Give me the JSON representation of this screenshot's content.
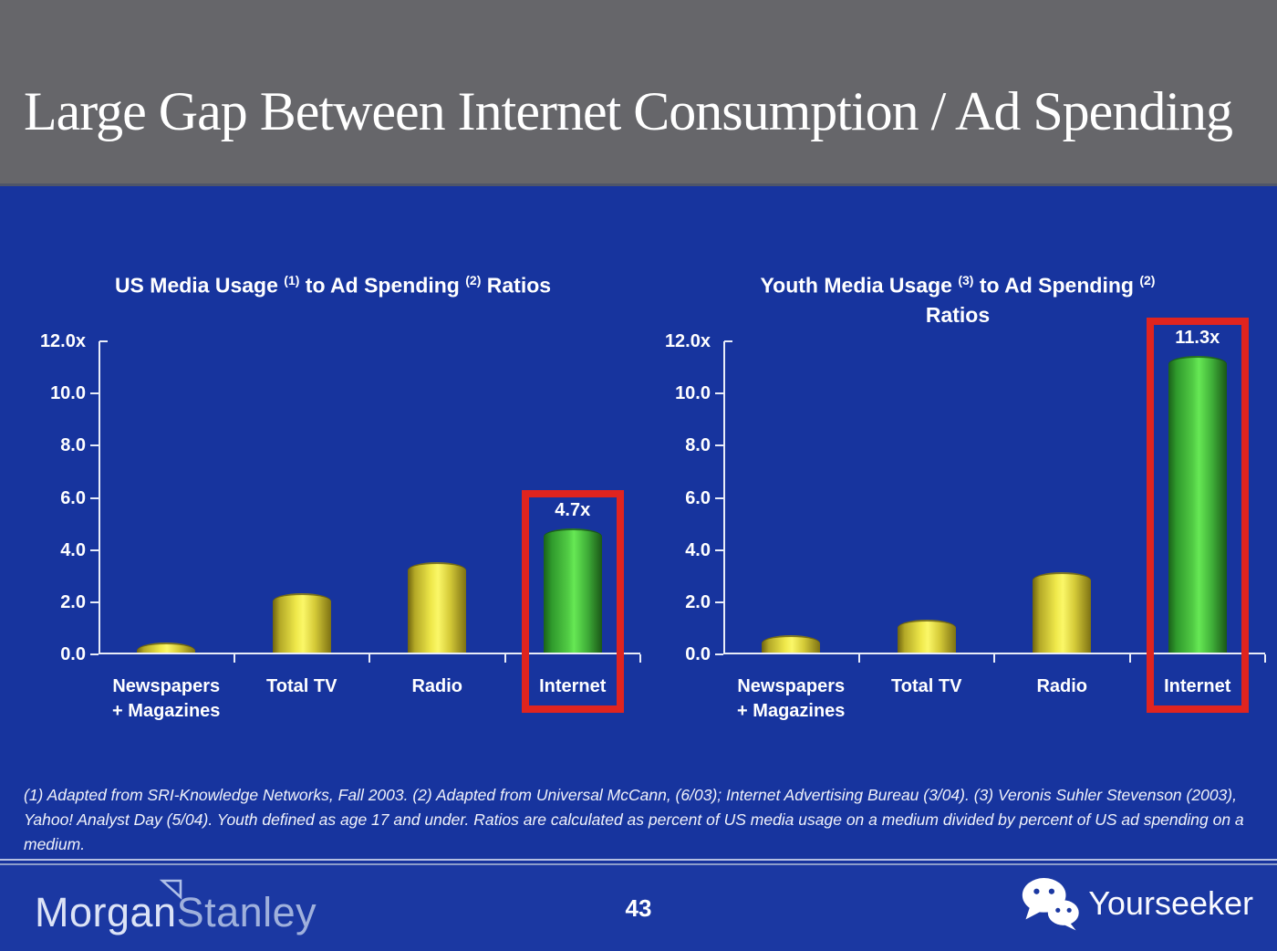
{
  "slide_title": "Large Gap Between Internet Consumption / Ad Spending",
  "footnote": "(1) Adapted from SRI-Knowledge Networks, Fall 2003.  (2) Adapted from Universal McCann, (6/03); Internet Advertising Bureau (3/04). (3) Veronis Suhler Stevenson (2003), Yahoo! Analyst Day (5/04).  Youth defined as age 17 and under.  Ratios are calculated as percent of US media usage on a medium divided by percent of US ad spending on a medium.",
  "footer": {
    "brand_part1": "Morgan",
    "brand_part2": "Stanley",
    "page_number": "43",
    "watermark_label": "Yourseeker",
    "watermark_icon": "wechat-icon",
    "brand_icon": "morgan-stanley-triangle-icon"
  },
  "colors": {
    "header_bg": "#66666A",
    "body_bg": "#17349E",
    "footer_bg": "#1B38A2",
    "title_text": "#FFFFFF",
    "axis_line": "#E8ECF8",
    "bar_yellow_mid": "#FBF768",
    "bar_yellow_edge": "#6E630F",
    "bar_green_mid": "#66E854",
    "bar_green_edge": "#1B611A",
    "highlight_red": "#E0241F"
  },
  "chart_data": [
    {
      "type": "bar",
      "name": "us-media-usage-to-ad-spending",
      "title_lines": [
        [
          {
            "text": "US Media Usage "
          },
          {
            "super": "(1)"
          },
          {
            "text": " to Ad Spending "
          },
          {
            "super": "(2)"
          },
          {
            "text": " Ratios"
          }
        ]
      ],
      "categories": [
        [
          "Newspapers",
          "+ Magazines"
        ],
        [
          "Total TV"
        ],
        [
          "Radio"
        ],
        [
          "Internet"
        ]
      ],
      "values": [
        0.3,
        2.2,
        3.4,
        4.7
      ],
      "bar_styles": [
        "yellow",
        "yellow",
        "yellow",
        "green"
      ],
      "data_labels": [
        "",
        "",
        "",
        "4.7x"
      ],
      "highlight_index": 3,
      "y_tick_labels": [
        "12.0x",
        "10.0",
        "8.0",
        "6.0",
        "4.0",
        "2.0",
        "0.0"
      ],
      "ylim": [
        0,
        12
      ],
      "grid": false,
      "legend": null
    },
    {
      "type": "bar",
      "name": "youth-media-usage-to-ad-spending",
      "title_lines": [
        [
          {
            "text": "Youth Media Usage "
          },
          {
            "super": "(3)"
          },
          {
            "text": " to Ad Spending "
          },
          {
            "super": "(2)"
          }
        ],
        [
          {
            "text": "Ratios"
          }
        ]
      ],
      "categories": [
        [
          "Newspapers",
          "+ Magazines"
        ],
        [
          "Total TV"
        ],
        [
          "Radio"
        ],
        [
          "Internet"
        ]
      ],
      "values": [
        0.6,
        1.2,
        3.0,
        11.3
      ],
      "bar_styles": [
        "yellow",
        "yellow",
        "yellow",
        "green"
      ],
      "data_labels": [
        "",
        "",
        "",
        "11.3x"
      ],
      "highlight_index": 3,
      "y_tick_labels": [
        "12.0x",
        "10.0",
        "8.0",
        "6.0",
        "4.0",
        "2.0",
        "0.0"
      ],
      "ylim": [
        0,
        12
      ],
      "grid": false,
      "legend": null
    }
  ]
}
